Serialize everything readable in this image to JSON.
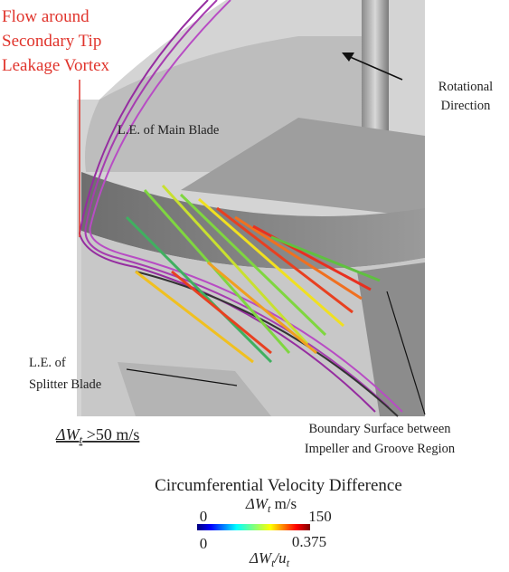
{
  "annotations": {
    "vortex": [
      "Flow around",
      "Secondary Tip",
      "Leakage Vortex"
    ],
    "main_blade": "L.E. of Main Blade",
    "rotation": [
      "Rotational",
      "Direction"
    ],
    "splitter": [
      "L.E. of",
      "Splitter Blade"
    ],
    "boundary": [
      "Boundary Surface between",
      "Impeller and Groove Region"
    ],
    "threshold": {
      "symbol": "ΔW",
      "subscript": "t",
      "text": " >50 m/s"
    }
  },
  "colorbar": {
    "title": "Circumferential Velocity Difference",
    "top": {
      "symbol": "ΔW",
      "subscript": "t",
      "unit": " m/s",
      "min": 0,
      "max": 150
    },
    "bottom": {
      "symbol": "ΔW",
      "subscript": "t",
      "divisor": "/u",
      "divisor_subscript": "t",
      "min": 0,
      "max": 0.375
    }
  }
}
